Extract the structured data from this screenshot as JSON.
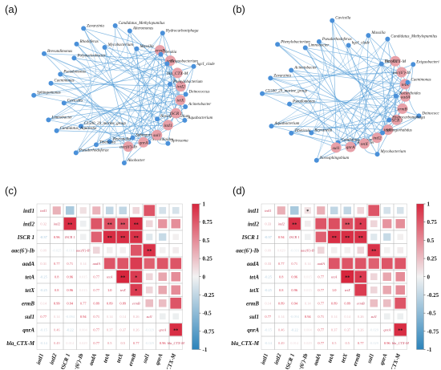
{
  "panels": [
    {
      "label": "(a)",
      "network": {
        "nodes": [
          {
            "name": "Acinetobacter",
            "type": "bacteria"
          },
          {
            "name": "Aquabacterium",
            "type": "bacteria"
          },
          {
            "name": "Novosphingobium",
            "type": "bacteria"
          },
          {
            "name": "Spirosoma",
            "type": "bacteria"
          },
          {
            "name": "Nocardioides",
            "type": "bacteria"
          },
          {
            "name": "Sphingorhabdus",
            "type": "bacteria"
          },
          {
            "name": "Alsobacter",
            "type": "bacteria"
          },
          {
            "name": "Reyranella",
            "type": "bacteria"
          },
          {
            "name": "ermB",
            "type": "gene"
          },
          {
            "name": "Tibeticola",
            "type": "bacteria"
          },
          {
            "name": "Pseudorhodoferax",
            "type": "bacteria"
          },
          {
            "name": "CL500_29_marine_group",
            "type": "bacteria"
          },
          {
            "name": "Candidatus_Aquirestis",
            "type": "bacteria"
          },
          {
            "name": "Limnobacter",
            "type": "bacteria"
          },
          {
            "name": "Cavicella",
            "type": "bacteria"
          },
          {
            "name": "Sphingomonas",
            "type": "bacteria"
          },
          {
            "name": "Caenimonas",
            "type": "bacteria"
          },
          {
            "name": "Pseudomonas",
            "type": "bacteria"
          },
          {
            "name": "tetA",
            "type": "gene"
          },
          {
            "name": "Brevundimonas",
            "type": "bacteria"
          },
          {
            "name": "Polynucleobacter",
            "type": "bacteria"
          },
          {
            "name": "Rhodoferax",
            "type": "bacteria"
          },
          {
            "name": "Zavarzinia",
            "type": "bacteria"
          },
          {
            "name": "Mycobacterium",
            "type": "bacteria"
          },
          {
            "name": "bla_CTX-M",
            "type": "gene"
          },
          {
            "name": "Candidatus_Methylopumilus",
            "type": "bacteria"
          },
          {
            "name": "Alteromonas",
            "type": "bacteria"
          },
          {
            "name": "intI2",
            "type": "gene"
          },
          {
            "name": "Massilia",
            "type": "bacteria"
          },
          {
            "name": "tetX",
            "type": "gene"
          },
          {
            "name": "ISCR 1",
            "type": "gene"
          },
          {
            "name": "Hydrocarboniphaga",
            "type": "bacteria"
          },
          {
            "name": "Nevskia",
            "type": "bacteria"
          },
          {
            "name": "Exiguobacterium",
            "type": "bacteria"
          },
          {
            "name": "intI1",
            "type": "gene"
          },
          {
            "name": "hgcI_clade",
            "type": "bacteria"
          },
          {
            "name": "sul1",
            "type": "gene"
          },
          {
            "name": "Phenylobacterium",
            "type": "bacteria"
          },
          {
            "name": "qnrA",
            "type": "gene"
          },
          {
            "name": "Deinococcus",
            "type": "bacteria"
          },
          {
            "name": "aac(6')-Ib",
            "type": "gene"
          }
        ]
      }
    },
    {
      "label": "(b)",
      "network": {
        "nodes": [
          {
            "name": "Mycobacterium",
            "type": "bacteria"
          },
          {
            "name": "Alsobacter",
            "type": "bacteria"
          },
          {
            "name": "Candidatus_Aquirestis",
            "type": "bacteria"
          },
          {
            "name": "Novosphingobium",
            "type": "bacteria"
          },
          {
            "name": "Reyranella",
            "type": "bacteria"
          },
          {
            "name": "Tibeticola",
            "type": "bacteria"
          },
          {
            "name": "Aquabacterium",
            "type": "bacteria"
          },
          {
            "name": "Pseudomonas",
            "type": "bacteria"
          },
          {
            "name": "bla_CTX-M",
            "type": "gene"
          },
          {
            "name": "CL500_29_marine_group",
            "type": "bacteria"
          },
          {
            "name": "Zavarzinia",
            "type": "bacteria"
          },
          {
            "name": "Acinetobacter",
            "type": "bacteria"
          },
          {
            "name": "Phenylobacterium",
            "type": "bacteria"
          },
          {
            "name": "Limnobacter",
            "type": "bacteria"
          },
          {
            "name": "aac(6')-Ib",
            "type": "gene"
          },
          {
            "name": "Pseudorhodoferax",
            "type": "bacteria"
          },
          {
            "name": "Cavicella",
            "type": "bacteria"
          },
          {
            "name": "hgcI_clade",
            "type": "bacteria"
          },
          {
            "name": "Massilia",
            "type": "bacteria"
          },
          {
            "name": "tetA",
            "type": "gene"
          },
          {
            "name": "Candidatus_Methylopumilus",
            "type": "bacteria"
          },
          {
            "name": "aadA",
            "type": "gene"
          },
          {
            "name": "Nevskia",
            "type": "bacteria"
          },
          {
            "name": "Exiguobacterium",
            "type": "bacteria"
          },
          {
            "name": "ermB",
            "type": "gene"
          },
          {
            "name": "Caenimonas",
            "type": "bacteria"
          },
          {
            "name": "ISCR 1",
            "type": "gene"
          },
          {
            "name": "intI1",
            "type": "gene"
          },
          {
            "name": "Nocardioides",
            "type": "bacteria"
          },
          {
            "name": "Deinococcus",
            "type": "bacteria"
          },
          {
            "name": "intI2",
            "type": "gene"
          },
          {
            "name": "Hydrocarboniphaga",
            "type": "bacteria"
          },
          {
            "name": "tetX",
            "type": "gene"
          },
          {
            "name": "qnrA",
            "type": "gene"
          },
          {
            "name": "sul1",
            "type": "gene"
          },
          {
            "name": "Sphingorhabdus",
            "type": "bacteria"
          }
        ]
      }
    },
    {
      "label": "(c)"
    },
    {
      "label": "(d)"
    }
  ],
  "colors": {
    "bacteria_node": "#4a90d9",
    "gene_node": "#e8a0a8",
    "edge": "#5aa0d8",
    "grid_line": "#bbbbbb",
    "positive_max": "#d7263d",
    "neutral": "#f2f2f2",
    "negative_max": "#2b83ba"
  },
  "chart_data": [
    {
      "type": "heatmap",
      "panel": "(c)",
      "genes": [
        "intI1",
        "intI2",
        "ISCR 1",
        "aac(6')-Ib",
        "aadA",
        "tetA",
        "tetX",
        "ermB",
        "sul1",
        "qnrA",
        "bla_CTX-M"
      ],
      "color_scale": {
        "min": -1,
        "max": 1,
        "ticks": [
          1,
          0.75,
          0.5,
          0.25,
          0,
          -0.25,
          -0.5,
          -0.75,
          -1
        ]
      },
      "lower_triangle_values": [
        [],
        [
          "0.32"
        ],
        [
          "-0.37",
          "0.96"
        ],
        [
          "0.09",
          "-0.025",
          "-0.016"
        ],
        [
          "0.31",
          "0.77",
          "0.71",
          "0.14"
        ],
        [
          "-0.25",
          "0.8",
          "0.96",
          "0.015",
          "0.77"
        ],
        [
          "-0.25",
          "0.8",
          "0.96",
          "0.015",
          "0.77",
          "1.0"
        ],
        [
          "0.14",
          "0.99",
          "0.94",
          "0.77",
          "0.89",
          "0.89",
          "0.89"
        ],
        [
          "0.77",
          "0.14",
          "-0.094",
          "0.94",
          "0.71",
          "0.14",
          "0.14",
          "0.26"
        ],
        [
          "-0.15",
          "0.46",
          "-0.22",
          "0.004",
          "0.77",
          "0.37",
          "0.37",
          "0.26",
          "-0.029"
        ],
        [
          "-0.14",
          "0.49",
          "0.014",
          "0.029",
          "0.77",
          "0.5",
          "0.5",
          "0.77",
          "-0.029",
          "0.96"
        ]
      ],
      "upper_triangle_values": [
        [
          "0.32",
          "-0.37",
          "0.09",
          "0.31",
          "-0.25",
          "-0.25",
          "0.14",
          "0.77",
          "-0.15",
          "-0.14"
        ],
        [
          "0.96",
          "-0.025",
          "0.77",
          "0.8",
          "0.8",
          "0.99",
          "0.14",
          "0.46",
          "0.49"
        ],
        [
          "-0.016",
          "0.71",
          "0.96",
          "0.96",
          "0.94",
          "-0.094",
          "-0.22",
          "0.014"
        ],
        [
          "0.14",
          "0.015",
          "0.015",
          "0.77",
          "0.94",
          "0.004",
          "0.029"
        ],
        [
          "0.77",
          "0.77",
          "0.89",
          "0.71",
          "0.77",
          "0.77"
        ],
        [
          "1.0",
          "0.89",
          "0.14",
          "0.37",
          "0.5"
        ],
        [
          "0.89",
          "0.14",
          "0.37",
          "0.5"
        ],
        [
          "0.26",
          "0.26",
          "0.77"
        ],
        [
          "-0.029",
          "-0.029"
        ],
        [
          "0.96"
        ],
        []
      ],
      "significance": [
        {
          "row": "intI2",
          "col": "ISCR 1",
          "mark": "**"
        },
        {
          "row": "intI2",
          "col": "tetA",
          "mark": "**"
        },
        {
          "row": "intI2",
          "col": "tetX",
          "mark": "**"
        },
        {
          "row": "intI2",
          "col": "ermB",
          "mark": "**"
        },
        {
          "row": "ISCR 1",
          "col": "tetA",
          "mark": "**"
        },
        {
          "row": "ISCR 1",
          "col": "tetX",
          "mark": "**"
        },
        {
          "row": "ISCR 1",
          "col": "ermB",
          "mark": "**"
        },
        {
          "row": "aac(6')-Ib",
          "col": "sul1",
          "mark": "**"
        },
        {
          "row": "tetA",
          "col": "tetX",
          "mark": "**"
        },
        {
          "row": "tetA",
          "col": "ermB",
          "mark": "*"
        },
        {
          "row": "tetX",
          "col": "ermB",
          "mark": "*"
        },
        {
          "row": "qnrA",
          "col": "bla_CTX-M",
          "mark": "**"
        }
      ]
    },
    {
      "type": "heatmap",
      "panel": "(d)",
      "genes": [
        "intI1",
        "intI2",
        "ISCR 1",
        "aac(6')-Ib",
        "aadA",
        "tetA",
        "tetX",
        "ermB",
        "sul1",
        "qnrA",
        "bla_CTX-M"
      ],
      "color_scale": {
        "min": -1,
        "max": 1,
        "ticks": [
          1,
          0.75,
          0.5,
          0.25,
          0,
          -0.25,
          -0.5,
          -0.75,
          -1
        ]
      },
      "lower_triangle_values": [
        [],
        [
          "0.33"
        ],
        [
          "-0.37",
          "0.94"
        ],
        [
          "0.09",
          "0.029",
          "-0.016"
        ],
        [
          "0.33",
          "0.77",
          "0.71",
          "0.14"
        ],
        [
          "-0.25",
          "0.8",
          "0.96",
          "0.015",
          "0.77"
        ],
        [
          "-0.25",
          "0.8",
          "0.96",
          "0.015",
          "0.77",
          "1.0"
        ],
        [
          "0.14",
          "0.89",
          "0.94",
          "0.14",
          "0.77",
          "0.89",
          "0.89"
        ],
        [
          "0.77",
          "0.14",
          "-0.094",
          "0.94",
          "0.71",
          "0.14",
          "0.14",
          "0.26"
        ],
        [
          "-0.15",
          "0.46",
          "-0.22",
          "0.004",
          "0.77",
          "0.37",
          "0.37",
          "0.26",
          "-0.029"
        ],
        [
          "-0.14",
          "0.49",
          "0.014",
          "0.029",
          "0.77",
          "0.5",
          "0.5",
          "0.77",
          "-0.029",
          "0.96"
        ]
      ],
      "upper_triangle_values": [
        [
          "0.33",
          "-0.37",
          "0.09",
          "0.33",
          "-0.25",
          "-0.25",
          "0.14",
          "0.77",
          "-0.15",
          "-0.14"
        ],
        [
          "0.94",
          "0.029",
          "0.77",
          "0.8",
          "0.8",
          "0.89",
          "0.14",
          "0.46",
          "0.49"
        ],
        [
          "-0.016",
          "0.71",
          "0.96",
          "0.96",
          "0.94",
          "-0.094",
          "-0.22",
          "0.014"
        ],
        [
          "0.14",
          "0.015",
          "0.015",
          "0.14",
          "0.94",
          "0.004",
          "0.029"
        ],
        [
          "0.77",
          "0.77",
          "0.77",
          "0.71",
          "0.77",
          "0.77"
        ],
        [
          "1.0",
          "0.89",
          "0.14",
          "0.37",
          "0.5"
        ],
        [
          "0.89",
          "0.14",
          "0.37",
          "0.5"
        ],
        [
          "0.26",
          "0.26",
          "0.77"
        ],
        [
          "-0.029",
          "-0.029"
        ],
        [
          "0.96"
        ],
        []
      ],
      "significance": [
        {
          "row": "intI1",
          "col": "aac(6')-Ib",
          "mark": "*"
        },
        {
          "row": "intI2",
          "col": "ISCR 1",
          "mark": "**"
        },
        {
          "row": "intI2",
          "col": "tetX",
          "mark": "**"
        },
        {
          "row": "intI2",
          "col": "ermB",
          "mark": "*"
        },
        {
          "row": "ISCR 1",
          "col": "tetA",
          "mark": "**"
        },
        {
          "row": "ISCR 1",
          "col": "tetX",
          "mark": "**"
        },
        {
          "row": "ISCR 1",
          "col": "ermB",
          "mark": "**"
        },
        {
          "row": "aac(6')-Ib",
          "col": "sul1",
          "mark": "**"
        },
        {
          "row": "tetA",
          "col": "tetX",
          "mark": "**"
        },
        {
          "row": "tetA",
          "col": "ermB",
          "mark": "*"
        },
        {
          "row": "qnrA",
          "col": "bla_CTX-M",
          "mark": "**"
        }
      ]
    }
  ]
}
